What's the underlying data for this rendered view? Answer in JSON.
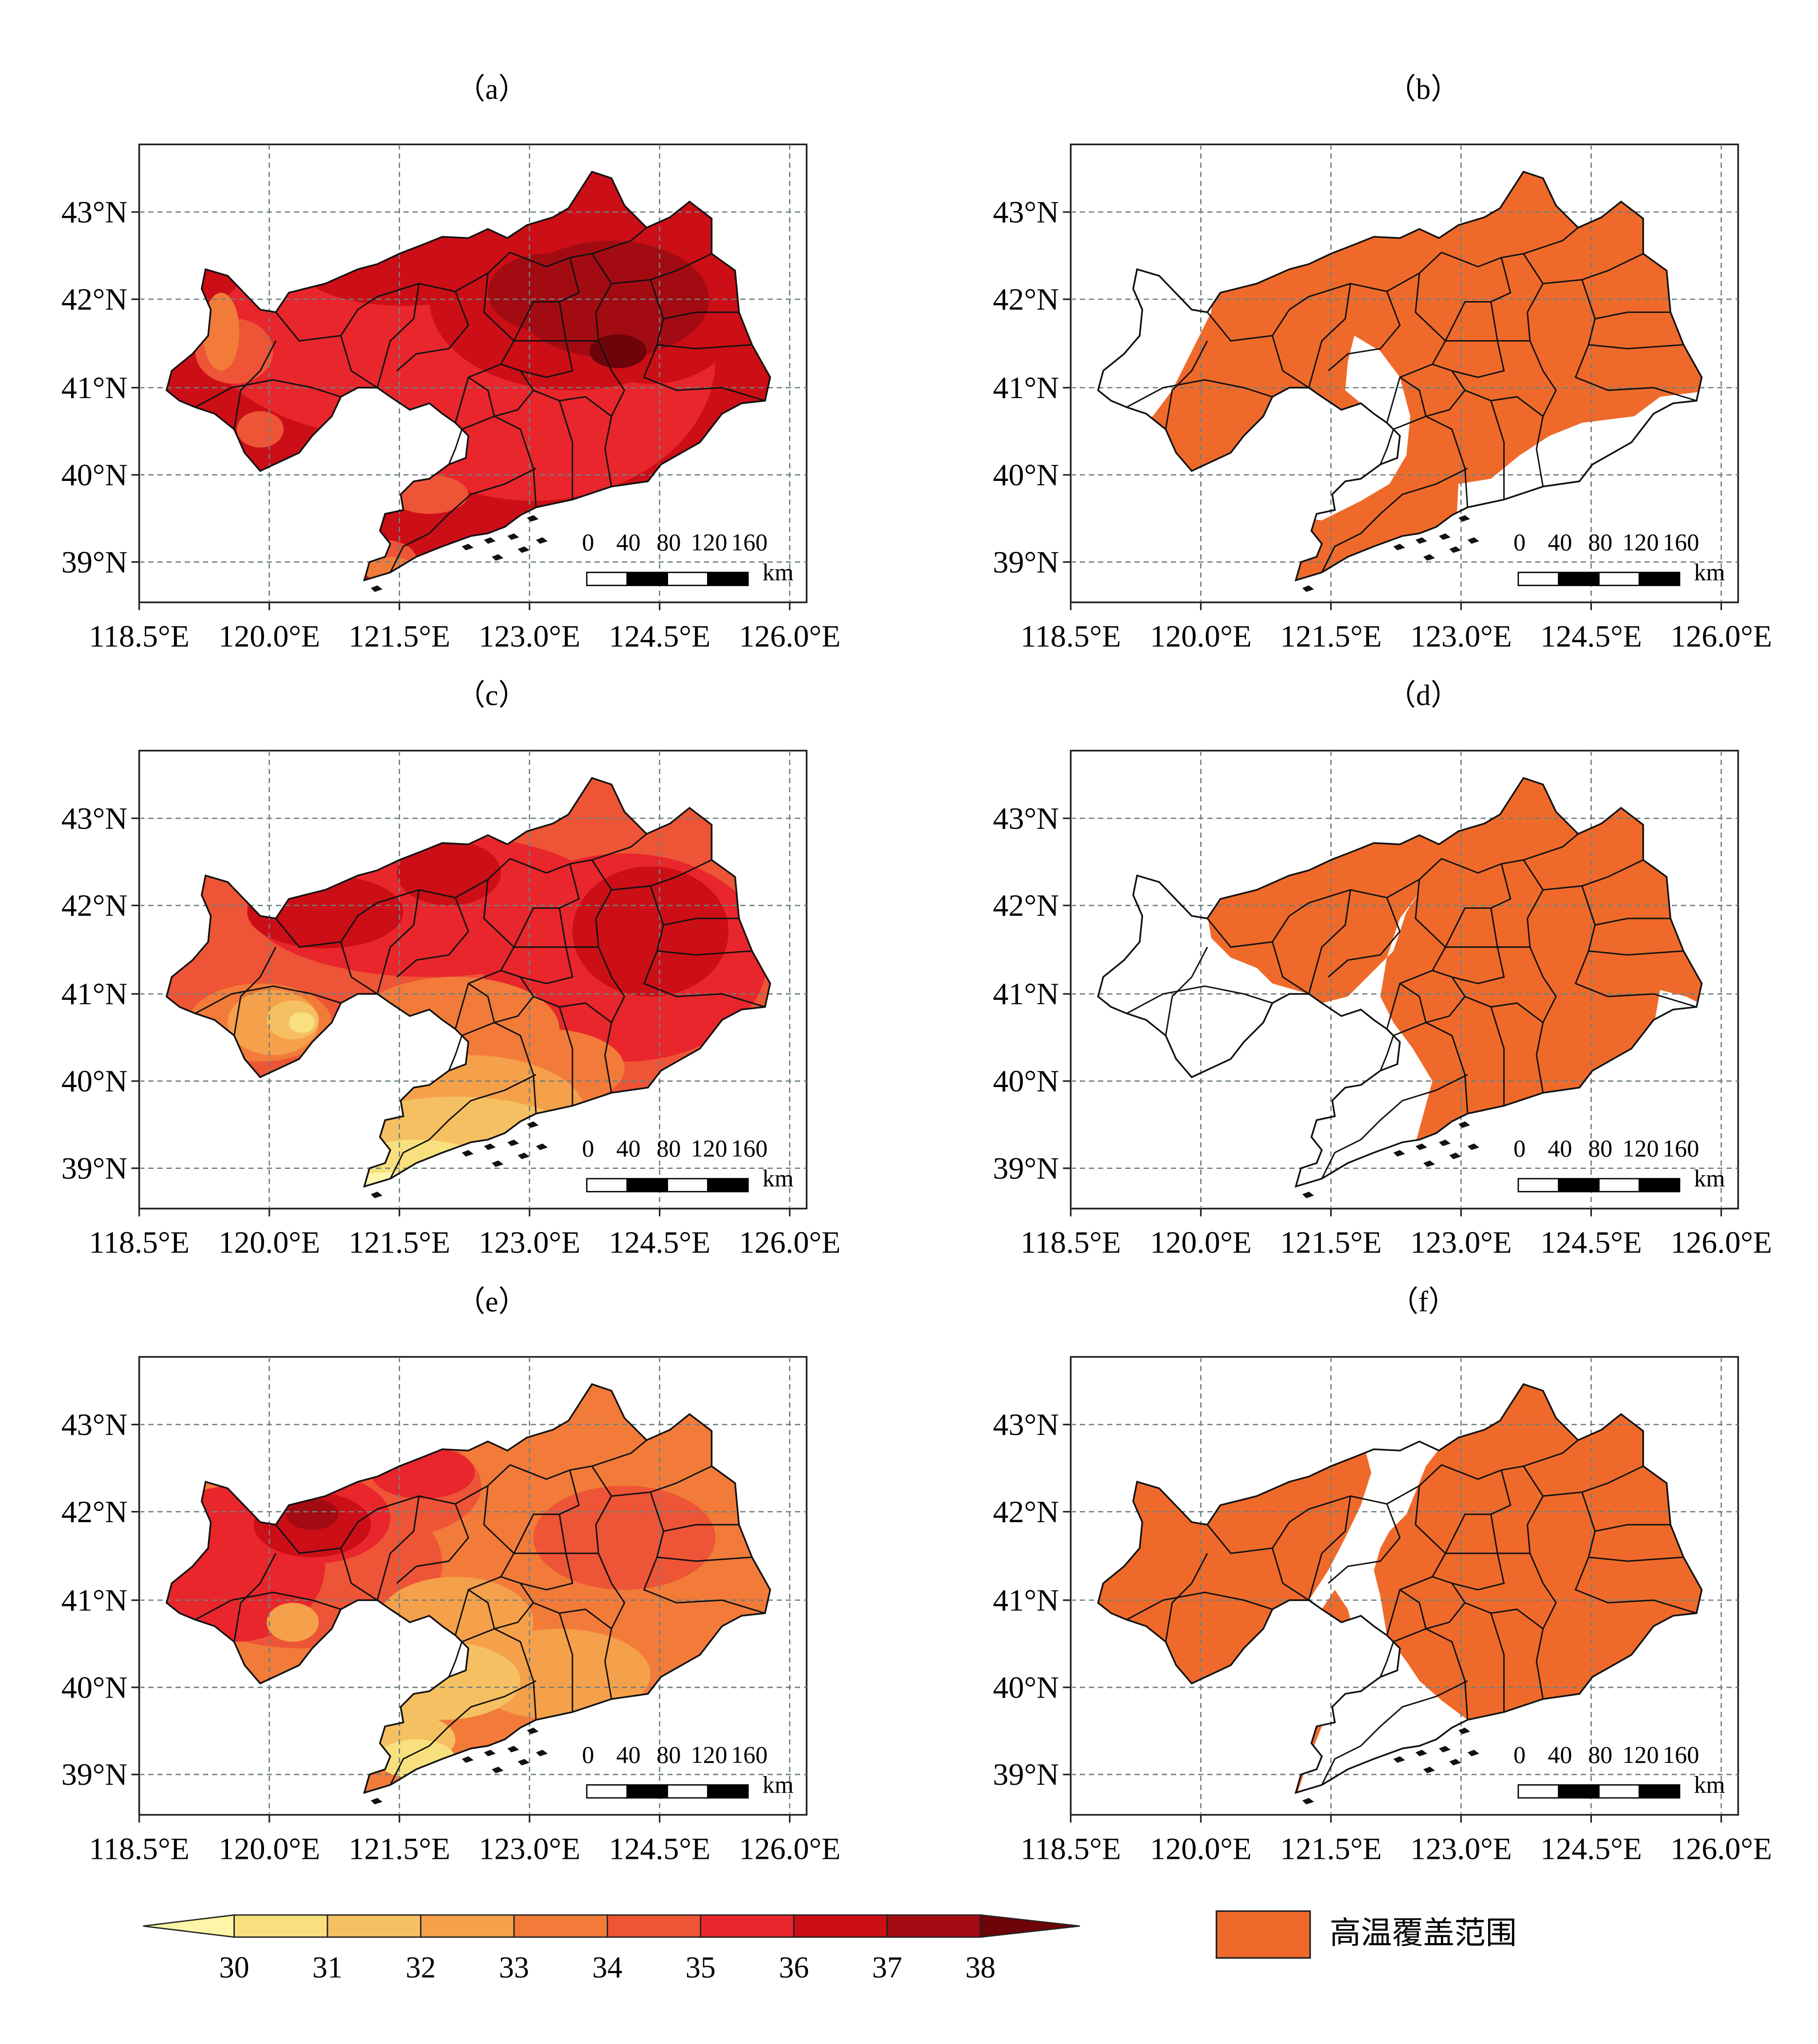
{
  "panels": [
    {
      "label": "（a）",
      "kind": "temperature",
      "variant": "a"
    },
    {
      "label": "（b）",
      "kind": "coverage",
      "variant": "b"
    },
    {
      "label": "（c）",
      "kind": "temperature",
      "variant": "c"
    },
    {
      "label": "（d）",
      "kind": "coverage",
      "variant": "d"
    },
    {
      "label": "（e）",
      "kind": "temperature",
      "variant": "e"
    },
    {
      "label": "（f）",
      "kind": "coverage",
      "variant": "f"
    }
  ],
  "axes": {
    "lon_ticks": [
      "118.5°E",
      "120.0°E",
      "121.5°E",
      "123.0°E",
      "124.5°E",
      "126.0°E"
    ],
    "lat_ticks": [
      "43°N",
      "42°N",
      "41°N",
      "40°N",
      "39°N"
    ]
  },
  "scale_bar": {
    "labels": [
      "0",
      "40",
      "80",
      "120",
      "160"
    ],
    "unit": "km"
  },
  "colorbar": {
    "labels": [
      "30",
      "31",
      "32",
      "33",
      "34",
      "35",
      "36",
      "37",
      "38"
    ],
    "colors": [
      "#fdf5a8",
      "#f8e07e",
      "#f5c062",
      "#f5a04a",
      "#f27b3a",
      "#ee5436",
      "#e8262b",
      "#cc0e16",
      "#a30b12",
      "#6e0309"
    ]
  },
  "legend": {
    "label": "高温覆盖范围",
    "color": "#ef6a2a"
  },
  "chart_data": {
    "type": "map",
    "region": "Liaoning",
    "lon_range": [
      118.5,
      126.0
    ],
    "lat_range": [
      38.5,
      43.8
    ],
    "grid": true
  }
}
